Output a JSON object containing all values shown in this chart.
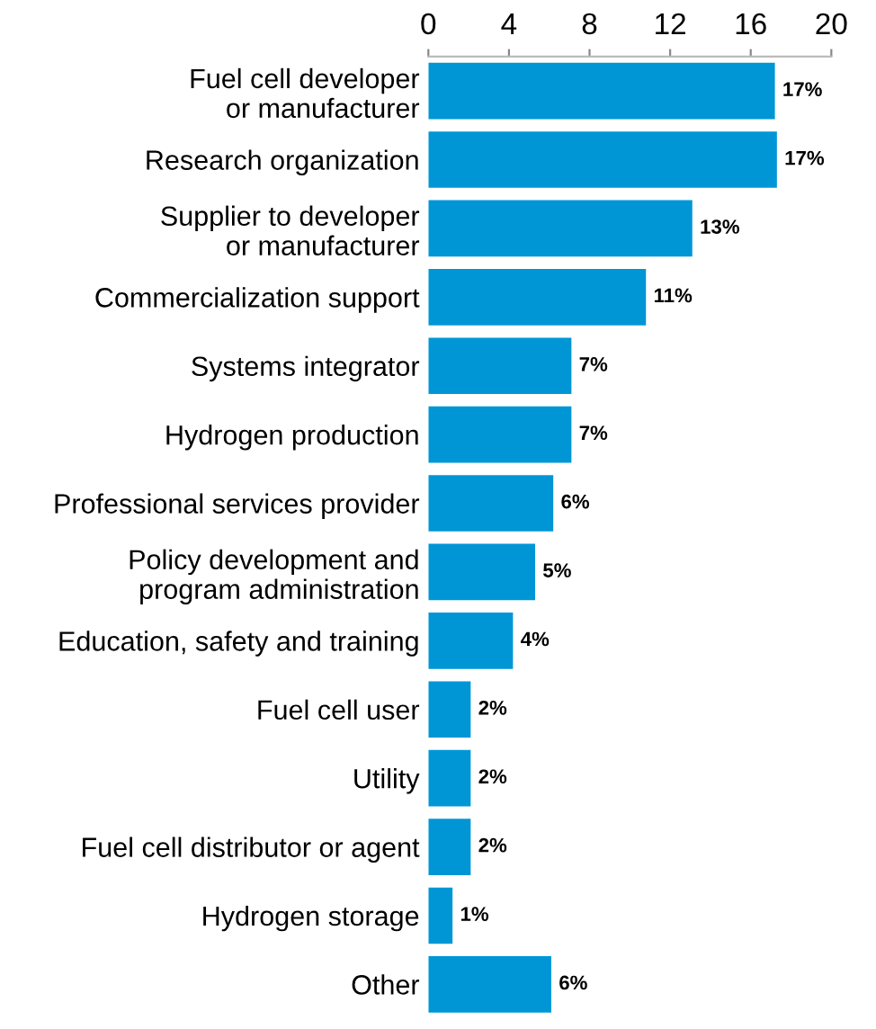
{
  "chart_data": {
    "type": "bar",
    "orientation": "horizontal",
    "categories": [
      "Fuel cell developer\nor manufacturer",
      "Research organization",
      "Supplier to developer\nor manufacturer",
      "Commercialization support",
      "Systems integrator",
      "Hydrogen production",
      "Professional services provider",
      "Policy development and\nprogram administration",
      "Education, safety and training",
      "Fuel cell user",
      "Utility",
      "Fuel cell distributor or agent",
      "Hydrogen storage",
      "Other"
    ],
    "values": [
      17.2,
      17.3,
      13.1,
      10.8,
      7.1,
      7.1,
      6.2,
      5.3,
      4.2,
      2.1,
      2.1,
      2.1,
      1.2,
      6.1
    ],
    "value_labels": [
      "17%",
      "17%",
      "13%",
      "11%",
      "7%",
      "7%",
      "6%",
      "5%",
      "4%",
      "2%",
      "2%",
      "2%",
      "1%",
      "6%"
    ],
    "color": "#0096d6",
    "xlim": [
      0,
      20
    ],
    "xticks": [
      0,
      4,
      8,
      12,
      16,
      20
    ],
    "grid": false,
    "legend": false
  }
}
